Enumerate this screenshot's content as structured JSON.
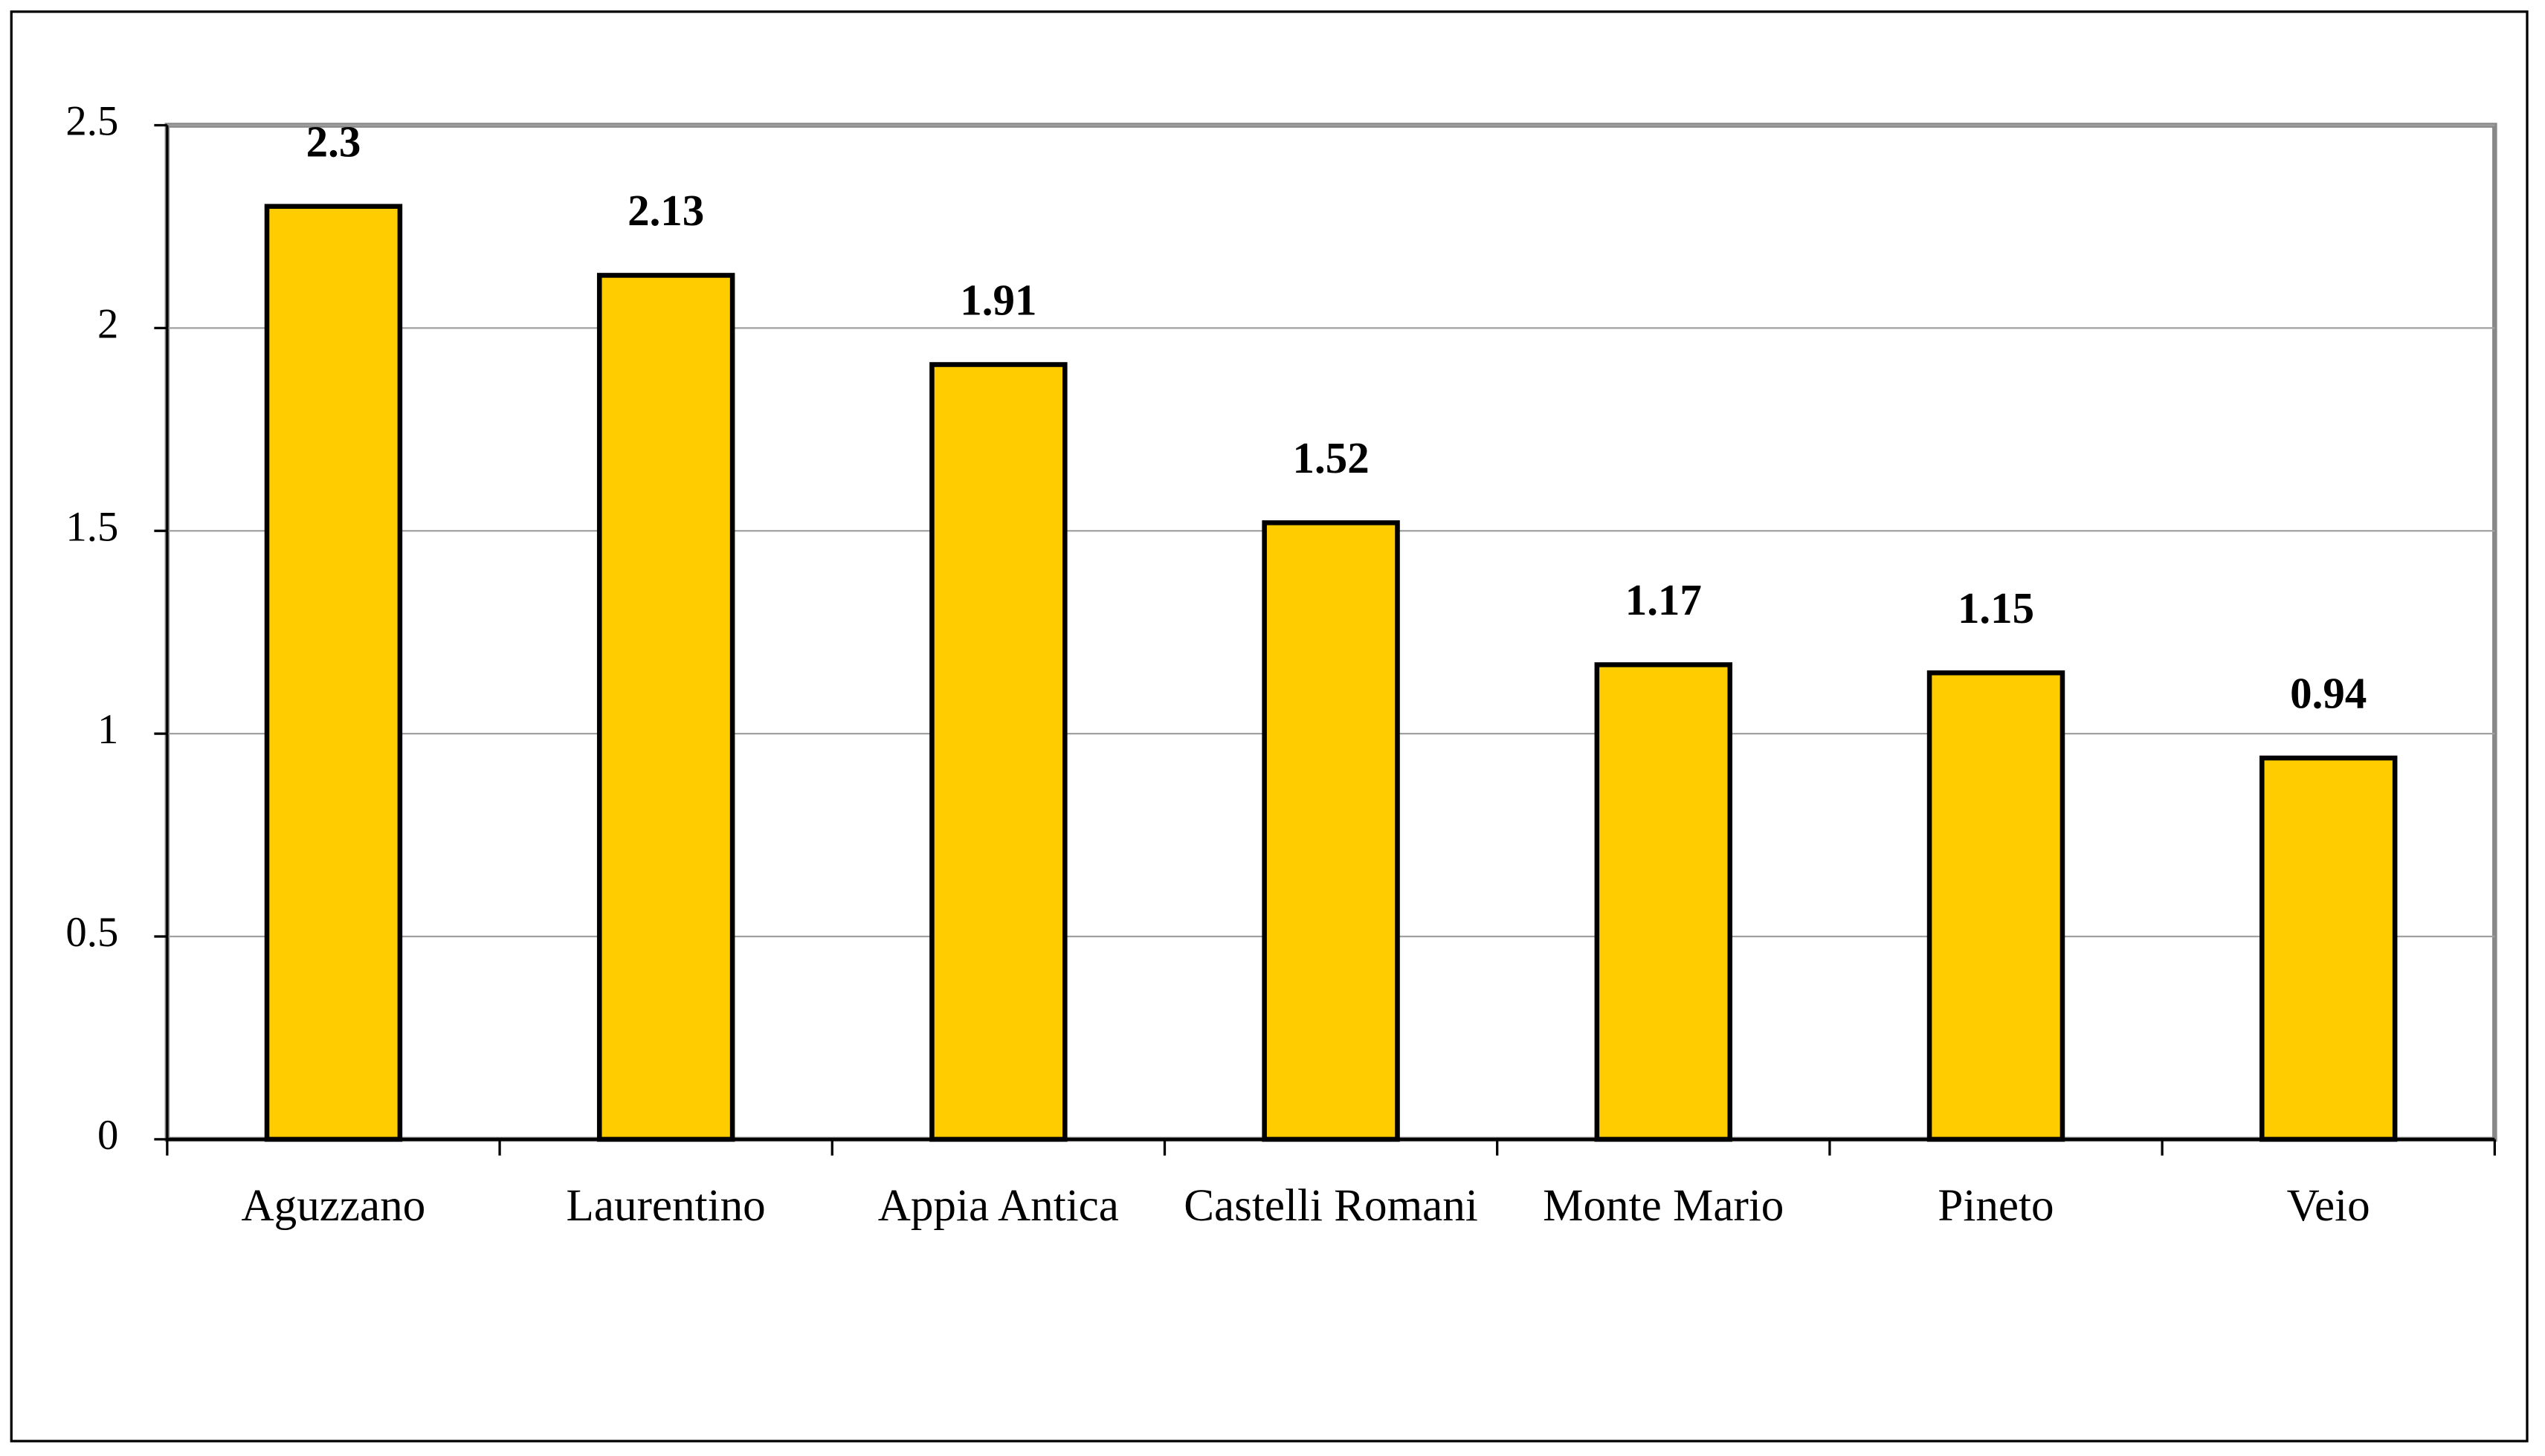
{
  "chart_data": {
    "type": "bar",
    "categories": [
      "Aguzzano",
      "Laurentino",
      "Appia Antica",
      "Castelli Romani",
      "Monte Mario",
      "Pineto",
      "Veio"
    ],
    "values": [
      2.3,
      2.13,
      1.91,
      1.52,
      1.17,
      1.15,
      0.94
    ],
    "color": "#ffcc00",
    "ylim": [
      0,
      2.5
    ],
    "yticks": [
      0,
      0.5,
      1,
      1.5,
      2,
      2.5
    ],
    "grid": true
  }
}
